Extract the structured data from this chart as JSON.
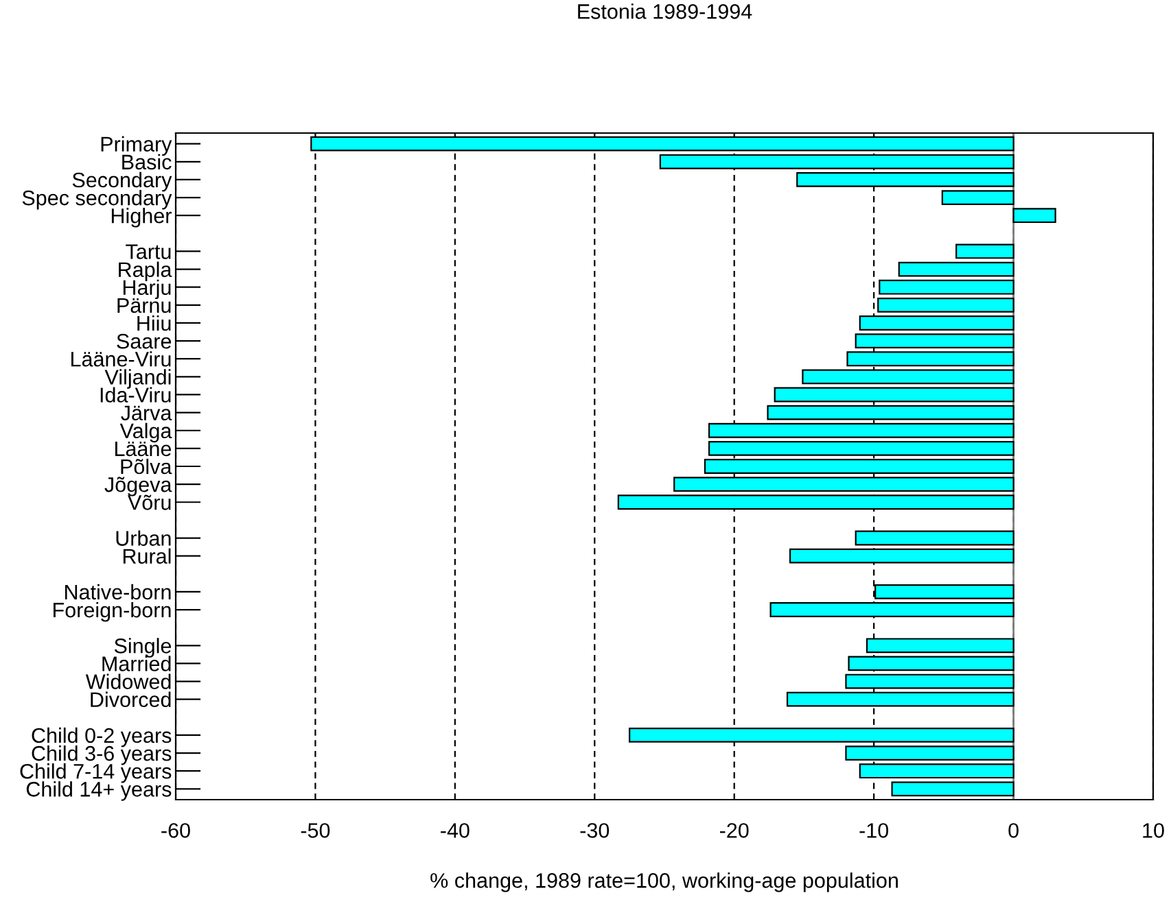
{
  "chart_data": {
    "type": "bar",
    "orientation": "horizontal",
    "title": "Estonia 1989-1994",
    "xlabel": "% change, 1989 rate=100, working-age population",
    "categories": [
      "Primary",
      "Basic",
      "Secondary",
      "Spec secondary",
      "Higher",
      null,
      "Tartu",
      "Rapla",
      "Harju",
      "Pärnu",
      "Hiiu",
      "Saare",
      "Lääne-Viru",
      "Viljandi",
      "Ida-Viru",
      "Järva",
      "Valga",
      "Lääne",
      "Põlva",
      "Jõgeva",
      "Võru",
      null,
      "Urban",
      "Rural",
      null,
      "Native-born",
      "Foreign-born",
      null,
      "Single",
      "Married",
      "Widowed",
      "Divorced",
      null,
      "Child 0-2 years",
      "Child 3-6 years",
      "Child 7-14 years",
      "Child 14+ years"
    ],
    "values": [
      -50.3,
      -25.3,
      -15.5,
      -5.1,
      3.0,
      null,
      -4.1,
      -8.2,
      -9.6,
      -9.7,
      -11.0,
      -11.3,
      -11.9,
      -15.1,
      -17.1,
      -17.6,
      -21.8,
      -21.8,
      -22.1,
      -24.3,
      -28.3,
      null,
      -11.3,
      -16.0,
      null,
      -9.9,
      -17.4,
      null,
      -10.5,
      -11.8,
      -12.0,
      -16.2,
      null,
      -27.5,
      -12.0,
      -11.0,
      -8.7
    ],
    "color": "#00ffff",
    "xlim": [
      -60,
      10
    ],
    "xticks": [
      -60,
      -50,
      -40,
      -30,
      -20,
      -10,
      0,
      10
    ],
    "grid": "x",
    "line_style": "dashed",
    "ref_lines": [
      {
        "axis": "x",
        "value": 0,
        "color": "#808080"
      }
    ]
  }
}
